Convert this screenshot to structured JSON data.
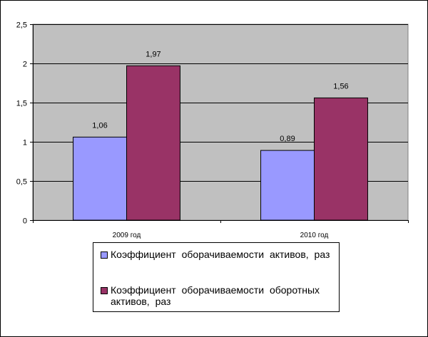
{
  "chart_data": {
    "type": "bar",
    "categories": [
      "2009 год",
      "2010 год"
    ],
    "series": [
      {
        "name": "Коэффициент оборачиваемости активов, раз",
        "values": [
          1.06,
          0.89
        ],
        "labels": [
          "1,06",
          "0,89"
        ],
        "color": "#9999ff"
      },
      {
        "name": "Коэффициент оборачиваемости оборотных активов, раз",
        "values": [
          1.97,
          1.56
        ],
        "labels": [
          "1,97",
          "1,56"
        ],
        "color": "#993366"
      }
    ],
    "ylim": [
      0,
      2.5
    ],
    "yticks": [
      0,
      0.5,
      1,
      1.5,
      2,
      2.5
    ],
    "ytick_labels": [
      "0",
      "0,5",
      "1",
      "1,5",
      "2",
      "2,5"
    ],
    "grid": true,
    "plot_background": "#c0c0c0",
    "legend_position": "bottom"
  },
  "legend": {
    "items": [
      {
        "line1": "Коэффициент  оборачиваемости  активов, раз",
        "line2": ""
      },
      {
        "line1": "Коэффициент  оборачиваемости  оборотных",
        "line2": "активов, раз"
      }
    ]
  }
}
